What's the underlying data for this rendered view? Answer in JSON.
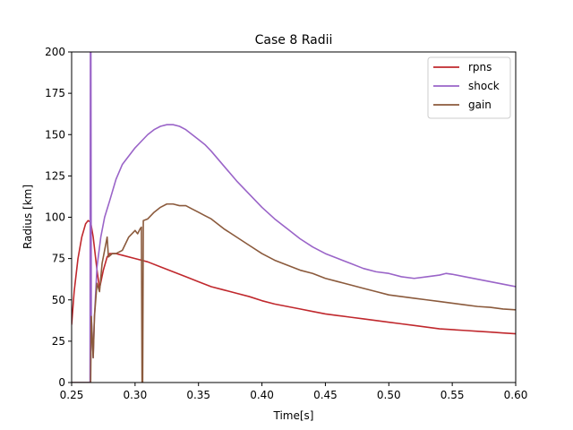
{
  "chart_data": {
    "type": "line",
    "title": "Case 8 Radii",
    "xlabel": "Time[s]",
    "ylabel": "Radius [km]",
    "xlim": [
      0.25,
      0.6
    ],
    "ylim": [
      0,
      200
    ],
    "xticks": [
      0.25,
      0.3,
      0.35,
      0.4,
      0.45,
      0.5,
      0.55,
      0.6
    ],
    "xtick_labels": [
      "0.25",
      "0.30",
      "0.35",
      "0.40",
      "0.45",
      "0.50",
      "0.55",
      "0.60"
    ],
    "yticks": [
      0,
      25,
      50,
      75,
      100,
      125,
      150,
      175,
      200
    ],
    "ytick_labels": [
      "0",
      "25",
      "50",
      "75",
      "100",
      "125",
      "150",
      "175",
      "200"
    ],
    "grid": false,
    "legend_position": "top-right",
    "series": [
      {
        "name": "rpns",
        "color": "#c0282d",
        "points": [
          [
            0.25,
            35
          ],
          [
            0.252,
            55
          ],
          [
            0.255,
            75
          ],
          [
            0.258,
            88
          ],
          [
            0.261,
            96
          ],
          [
            0.263,
            98
          ],
          [
            0.265,
            97
          ],
          [
            0.267,
            88
          ],
          [
            0.27,
            68
          ],
          [
            0.272,
            57
          ],
          [
            0.275,
            68
          ],
          [
            0.278,
            76
          ],
          [
            0.28,
            78
          ],
          [
            0.285,
            78
          ],
          [
            0.29,
            77
          ],
          [
            0.3,
            75
          ],
          [
            0.31,
            73
          ],
          [
            0.32,
            70
          ],
          [
            0.33,
            67
          ],
          [
            0.34,
            64
          ],
          [
            0.35,
            61
          ],
          [
            0.36,
            58
          ],
          [
            0.37,
            56
          ],
          [
            0.38,
            54
          ],
          [
            0.39,
            52
          ],
          [
            0.4,
            49.5
          ],
          [
            0.41,
            47.5
          ],
          [
            0.42,
            46
          ],
          [
            0.43,
            44.5
          ],
          [
            0.44,
            43
          ],
          [
            0.45,
            41.5
          ],
          [
            0.46,
            40.5
          ],
          [
            0.47,
            39.5
          ],
          [
            0.48,
            38.5
          ],
          [
            0.49,
            37.5
          ],
          [
            0.5,
            36.5
          ],
          [
            0.51,
            35.5
          ],
          [
            0.52,
            34.5
          ],
          [
            0.53,
            33.5
          ],
          [
            0.54,
            32.5
          ],
          [
            0.55,
            32
          ],
          [
            0.56,
            31.5
          ],
          [
            0.57,
            31
          ],
          [
            0.58,
            30.5
          ],
          [
            0.59,
            30
          ],
          [
            0.6,
            29.5
          ]
        ]
      },
      {
        "name": "shock",
        "color": "#9a64c8",
        "points": [
          [
            0.25,
            0
          ],
          [
            0.2645,
            0
          ],
          [
            0.2648,
            200
          ],
          [
            0.2652,
            200
          ],
          [
            0.2655,
            40
          ],
          [
            0.267,
            15
          ],
          [
            0.268,
            40
          ],
          [
            0.27,
            70
          ],
          [
            0.273,
            88
          ],
          [
            0.276,
            100
          ],
          [
            0.28,
            110
          ],
          [
            0.285,
            123
          ],
          [
            0.29,
            132
          ],
          [
            0.295,
            137
          ],
          [
            0.3,
            142
          ],
          [
            0.305,
            146
          ],
          [
            0.31,
            150
          ],
          [
            0.315,
            153
          ],
          [
            0.32,
            155
          ],
          [
            0.325,
            156
          ],
          [
            0.33,
            156
          ],
          [
            0.335,
            155
          ],
          [
            0.34,
            153
          ],
          [
            0.345,
            150
          ],
          [
            0.35,
            147
          ],
          [
            0.355,
            144
          ],
          [
            0.36,
            140
          ],
          [
            0.37,
            131
          ],
          [
            0.38,
            122
          ],
          [
            0.39,
            114
          ],
          [
            0.4,
            106
          ],
          [
            0.41,
            99
          ],
          [
            0.42,
            93
          ],
          [
            0.43,
            87
          ],
          [
            0.44,
            82
          ],
          [
            0.45,
            78
          ],
          [
            0.46,
            75
          ],
          [
            0.47,
            72
          ],
          [
            0.48,
            69
          ],
          [
            0.49,
            67
          ],
          [
            0.5,
            66
          ],
          [
            0.51,
            64
          ],
          [
            0.52,
            63
          ],
          [
            0.53,
            64
          ],
          [
            0.54,
            65
          ],
          [
            0.545,
            66
          ],
          [
            0.55,
            65.5
          ],
          [
            0.56,
            64
          ],
          [
            0.57,
            62.5
          ],
          [
            0.58,
            61
          ],
          [
            0.59,
            59.5
          ],
          [
            0.6,
            58
          ]
        ]
      },
      {
        "name": "gain",
        "color": "#8b5a3c",
        "points": [
          [
            0.25,
            0
          ],
          [
            0.265,
            0
          ],
          [
            0.2655,
            40
          ],
          [
            0.267,
            15
          ],
          [
            0.268,
            40
          ],
          [
            0.27,
            60
          ],
          [
            0.272,
            55
          ],
          [
            0.274,
            72
          ],
          [
            0.276,
            80
          ],
          [
            0.278,
            88
          ],
          [
            0.279,
            76
          ],
          [
            0.282,
            78
          ],
          [
            0.285,
            78
          ],
          [
            0.29,
            80
          ],
          [
            0.295,
            88
          ],
          [
            0.3,
            92
          ],
          [
            0.302,
            90
          ],
          [
            0.304,
            93
          ],
          [
            0.305,
            94
          ],
          [
            0.3055,
            0
          ],
          [
            0.306,
            0
          ],
          [
            0.3065,
            98
          ],
          [
            0.31,
            99
          ],
          [
            0.315,
            103
          ],
          [
            0.32,
            106
          ],
          [
            0.325,
            108
          ],
          [
            0.33,
            108
          ],
          [
            0.335,
            107
          ],
          [
            0.34,
            107
          ],
          [
            0.345,
            105
          ],
          [
            0.35,
            103
          ],
          [
            0.355,
            101
          ],
          [
            0.36,
            99
          ],
          [
            0.37,
            93
          ],
          [
            0.38,
            88
          ],
          [
            0.39,
            83
          ],
          [
            0.4,
            78
          ],
          [
            0.41,
            74
          ],
          [
            0.42,
            71
          ],
          [
            0.43,
            68
          ],
          [
            0.44,
            66
          ],
          [
            0.45,
            63
          ],
          [
            0.46,
            61
          ],
          [
            0.47,
            59
          ],
          [
            0.48,
            57
          ],
          [
            0.49,
            55
          ],
          [
            0.5,
            53
          ],
          [
            0.51,
            52
          ],
          [
            0.52,
            51
          ],
          [
            0.53,
            50
          ],
          [
            0.54,
            49
          ],
          [
            0.55,
            48
          ],
          [
            0.56,
            47
          ],
          [
            0.57,
            46
          ],
          [
            0.58,
            45.5
          ],
          [
            0.59,
            44.5
          ],
          [
            0.6,
            44
          ]
        ]
      }
    ]
  }
}
